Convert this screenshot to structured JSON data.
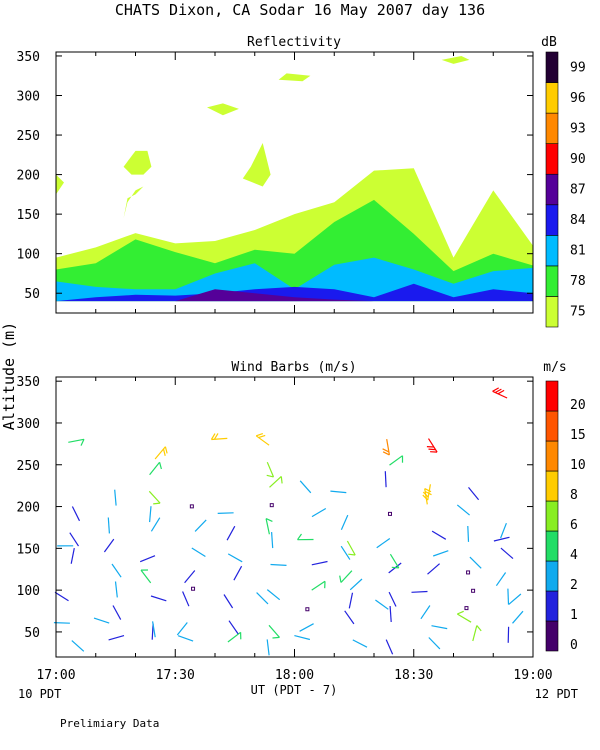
{
  "figure": {
    "title": "CHATS Dixon, CA  Sodar  16 May 2007  day 136",
    "ylabel": "Altitude (m)",
    "xlabel": "UT  (PDT - 7)",
    "left_note": "10 PDT",
    "right_note": "12 PDT",
    "footer": "Prelimiary Data"
  },
  "chart_data": [
    {
      "type": "area",
      "title": "Reflectivity",
      "colorbar_unit": "dB",
      "x_time_labels": [
        "17:00",
        "17:30",
        "18:00",
        "18:30",
        "19:00"
      ],
      "xlim_minutes": [
        0,
        120
      ],
      "ylim": [
        25,
        355
      ],
      "yticks": [
        50,
        100,
        150,
        200,
        250,
        300,
        350
      ],
      "levels": [
        75,
        78,
        81,
        84,
        87,
        90,
        93,
        96,
        99
      ],
      "level_colors": [
        "#ccff33",
        "#33ee33",
        "#00bbff",
        "#1a1aee",
        "#550099",
        "#ff0000",
        "#ff8800",
        "#ffcc00",
        "#220033"
      ],
      "x_minutes": [
        0,
        10,
        20,
        30,
        40,
        50,
        60,
        70,
        80,
        90,
        100,
        110,
        120
      ],
      "layers": [
        {
          "level": 75,
          "top": [
            95,
            108,
            126,
            113,
            116,
            130,
            150,
            165,
            205,
            208,
            95,
            180,
            110
          ]
        },
        {
          "level": 78,
          "top": [
            80,
            88,
            118,
            102,
            88,
            105,
            100,
            140,
            168,
            125,
            78,
            100,
            85
          ]
        },
        {
          "level": 81,
          "top": [
            65,
            58,
            55,
            55,
            75,
            88,
            55,
            86,
            95,
            80,
            62,
            78,
            82
          ]
        },
        {
          "level": 84,
          "top": [
            40,
            45,
            48,
            47,
            50,
            55,
            58,
            55,
            45,
            62,
            45,
            55,
            50
          ]
        },
        {
          "level": 87,
          "top": [
            40,
            40,
            40,
            40,
            55,
            50,
            45,
            42,
            40,
            40,
            40,
            40,
            40
          ]
        }
      ],
      "patches": [
        {
          "level": 75,
          "points": [
            [
              0,
              200
            ],
            [
              2,
              190
            ],
            [
              0,
              175
            ]
          ]
        },
        {
          "level": 75,
          "points": [
            [
              17,
              145
            ],
            [
              18,
              165
            ],
            [
              20,
              180
            ],
            [
              22,
              185
            ],
            [
              20,
              175
            ],
            [
              18,
              170
            ]
          ]
        },
        {
          "level": 75,
          "points": [
            [
              17,
              210
            ],
            [
              20,
              230
            ],
            [
              23,
              230
            ],
            [
              24,
              210
            ],
            [
              22,
              200
            ],
            [
              19,
              200
            ]
          ]
        },
        {
          "level": 75,
          "points": [
            [
              38,
              285
            ],
            [
              42,
              275
            ],
            [
              46,
              283
            ],
            [
              42,
              290
            ]
          ]
        },
        {
          "level": 75,
          "points": [
            [
              47,
              195
            ],
            [
              49,
              210
            ],
            [
              52,
              240
            ],
            [
              54,
              200
            ],
            [
              52,
              185
            ]
          ]
        },
        {
          "level": 75,
          "points": [
            [
              56,
              320
            ],
            [
              62,
              318
            ],
            [
              64,
              325
            ],
            [
              58,
              328
            ]
          ]
        },
        {
          "level": 75,
          "points": [
            [
              97,
              345
            ],
            [
              102,
              350
            ],
            [
              104,
              345
            ],
            [
              100,
              340
            ]
          ]
        }
      ]
    },
    {
      "type": "scatter",
      "title": "Wind Barbs (m/s)",
      "colorbar_unit": "m/s",
      "x_time_labels": [
        "17:00",
        "17:30",
        "18:00",
        "18:30",
        "19:00"
      ],
      "xlim_minutes": [
        0,
        120
      ],
      "ylim": [
        20,
        355
      ],
      "yticks": [
        50,
        100,
        150,
        200,
        250,
        300,
        350
      ],
      "speed_levels": [
        0,
        1,
        2,
        4,
        6,
        8,
        10,
        15,
        20
      ],
      "speed_colors": [
        "#44006a",
        "#2222dd",
        "#11aaee",
        "#22dd66",
        "#88ee22",
        "#ffcc00",
        "#ff8800",
        "#ff5500",
        "#ff0000"
      ],
      "heights": [
        40,
        60,
        80,
        100,
        120,
        140,
        160,
        180,
        200,
        220,
        240,
        260,
        280,
        300,
        320,
        340
      ],
      "barb_columns": [
        {
          "minute": 4,
          "samples": [
            [
              40,
              2
            ],
            [
              60,
              2
            ],
            [
              90,
              1
            ],
            [
              130,
              1
            ],
            [
              150,
              2
            ],
            [
              170,
              1
            ],
            [
              200,
              1
            ],
            [
              280,
              4
            ]
          ]
        },
        {
          "minute": 14,
          "samples": [
            [
              40,
              1
            ],
            [
              60,
              2
            ],
            [
              80,
              1
            ],
            [
              110,
              2
            ],
            [
              130,
              2
            ],
            [
              160,
              1
            ],
            [
              190,
              2
            ],
            [
              220,
              2
            ]
          ]
        },
        {
          "minute": 24,
          "samples": [
            [
              40,
              1
            ],
            [
              60,
              2
            ],
            [
              90,
              1
            ],
            [
              110,
              4
            ],
            [
              140,
              1
            ],
            [
              170,
              2
            ],
            [
              200,
              2
            ],
            [
              220,
              6
            ],
            [
              240,
              4
            ],
            [
              260,
              8
            ]
          ]
        },
        {
          "minute": 34,
          "samples": [
            [
              40,
              2
            ],
            [
              60,
              2
            ],
            [
              80,
              1
            ],
            [
              100,
              0
            ],
            [
              120,
              1
            ],
            [
              150,
              2
            ],
            [
              170,
              2
            ],
            [
              200,
              0
            ]
          ]
        },
        {
          "minute": 44,
          "samples": [
            [
              40,
              4
            ],
            [
              60,
              1
            ],
            [
              80,
              1
            ],
            [
              110,
              1
            ],
            [
              140,
              2
            ],
            [
              160,
              1
            ],
            [
              190,
              2
            ],
            [
              280,
              8
            ]
          ]
        },
        {
          "minute": 54,
          "samples": [
            [
              40,
              2
            ],
            [
              60,
              4
            ],
            [
              80,
              2
            ],
            [
              100,
              2
            ],
            [
              130,
              2
            ],
            [
              150,
              2
            ],
            [
              170,
              4
            ],
            [
              200,
              0
            ],
            [
              220,
              6
            ],
            [
              250,
              6
            ],
            [
              270,
              8
            ]
          ]
        },
        {
          "minute": 64,
          "samples": [
            [
              40,
              2
            ],
            [
              60,
              2
            ],
            [
              80,
              0
            ],
            [
              100,
              4
            ],
            [
              130,
              1
            ],
            [
              160,
              4
            ],
            [
              190,
              2
            ],
            [
              220,
              2
            ]
          ]
        },
        {
          "minute": 74,
          "samples": [
            [
              40,
              2
            ],
            [
              60,
              1
            ],
            [
              80,
              1
            ],
            [
              100,
              2
            ],
            [
              120,
              4
            ],
            [
              140,
              2
            ],
            [
              160,
              6
            ],
            [
              190,
              2
            ],
            [
              220,
              2
            ]
          ]
        },
        {
          "minute": 84,
          "samples": [
            [
              40,
              1
            ],
            [
              60,
              1
            ],
            [
              80,
              2
            ],
            [
              100,
              1
            ],
            [
              120,
              1
            ],
            [
              140,
              4
            ],
            [
              160,
              2
            ],
            [
              190,
              0
            ],
            [
              220,
              1
            ],
            [
              250,
              4
            ],
            [
              280,
              10
            ]
          ]
        },
        {
          "minute": 94,
          "samples": [
            [
              40,
              2
            ],
            [
              60,
              2
            ],
            [
              80,
              2
            ],
            [
              100,
              1
            ],
            [
              120,
              1
            ],
            [
              140,
              2
            ],
            [
              170,
              1
            ],
            [
              200,
              8
            ],
            [
              230,
              8
            ],
            [
              280,
              20
            ]
          ]
        },
        {
          "minute": 104,
          "samples": [
            [
              40,
              6
            ],
            [
              60,
              6
            ],
            [
              80,
              0
            ],
            [
              100,
              0
            ],
            [
              120,
              0
            ],
            [
              140,
              2
            ],
            [
              160,
              2
            ],
            [
              190,
              2
            ],
            [
              220,
              1
            ]
          ]
        },
        {
          "minute": 114,
          "samples": [
            [
              40,
              1
            ],
            [
              60,
              2
            ],
            [
              80,
              2
            ],
            [
              100,
              2
            ],
            [
              120,
              2
            ],
            [
              140,
              1
            ],
            [
              160,
              1
            ],
            [
              180,
              2
            ],
            [
              330,
              20
            ]
          ]
        }
      ]
    }
  ]
}
